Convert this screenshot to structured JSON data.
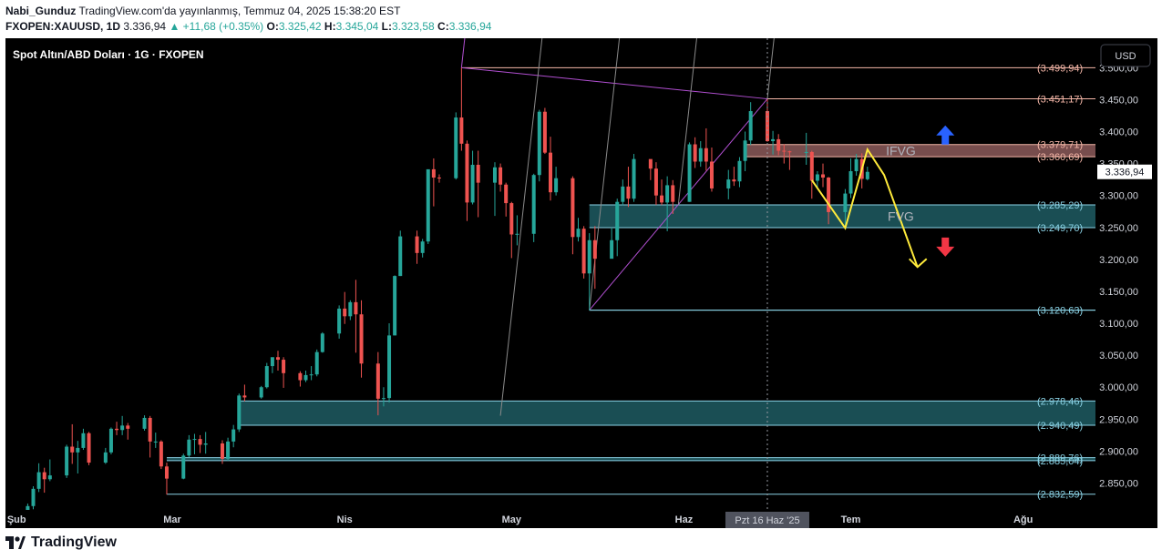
{
  "header": {
    "author": "Nabi_Gunduz",
    "published": "TradingView.com'da yayınlanmış, Temmuz 04, 2025 15:38:20 EST",
    "symbol": "FXOPEN:XAUUSD, 1D",
    "last": "3.336,94",
    "change": "▲ +11,68 (+0.35%)",
    "o_label": "O:",
    "o_val": "3.325,42",
    "h_label": "H:",
    "h_val": "3.345,04",
    "l_label": "L:",
    "l_val": "3.323,58",
    "c_label": "C:",
    "c_val": "3.336,94"
  },
  "footer": {
    "brand": "TradingView"
  },
  "colors": {
    "background": "#000000",
    "up": "#26a69a",
    "down": "#ef5350",
    "level_line": "#8bd3e6",
    "fvg_fill": "#1f5c63",
    "ifvg_fill": "#8c5a5a",
    "pitchfork": "#b14fd1",
    "channel": "#8a8a8a",
    "projection": "#ffeb3b",
    "arrow_up": "#2962ff",
    "arrow_down": "#f23645"
  },
  "chart_data": {
    "type": "candlestick",
    "title": "Spot Altın/ABD Doları · 1G · FXOPEN",
    "currency_button": "USD",
    "x_ticks": [
      "Şub",
      "Mar",
      "Nis",
      "May",
      "Haz",
      "Tem",
      "Ağu"
    ],
    "y_ticks": [
      "3.500,00",
      "3.450,00",
      "3.400,00",
      "3.350,00",
      "3.300,00",
      "3.250,00",
      "3.200,00",
      "3.150,00",
      "3.100,00",
      "3.050,00",
      "3.000,00",
      "2.950,00",
      "2.900,00",
      "2.850,00"
    ],
    "y_tick_values": [
      3500,
      3450,
      3400,
      3350,
      3300,
      3250,
      3200,
      3150,
      3100,
      3050,
      3000,
      2950,
      2900,
      2850
    ],
    "ylim": [
      2808,
      3546
    ],
    "crosshair_label": "Pzt 16 Haz '25",
    "last_price": 3336.94,
    "last_price_label": "3.336,94",
    "levels": [
      {
        "value": 3499.94,
        "label": "(3.499,94)",
        "color": "#f5b7a8",
        "start": "2025-04-22"
      },
      {
        "value": 3451.17,
        "label": "(3.451,17)",
        "color": "#f5b7a8",
        "start": "2025-06-16"
      },
      {
        "value": 3379.71,
        "label": "(3.379,71)",
        "color": "#f5b7a8",
        "start": "2025-06-12"
      },
      {
        "value": 3360.69,
        "label": "(3.360,69)",
        "color": "#f5b7a8",
        "start": "2025-06-12"
      },
      {
        "value": 3285.29,
        "label": "(3.285,29)",
        "color": "#8bd3e6",
        "start": "2025-05-15"
      },
      {
        "value": 3249.7,
        "label": "(3.249,70)",
        "color": "#8bd3e6",
        "start": "2025-05-15"
      },
      {
        "value": 3120.63,
        "label": "(3.120,63)",
        "color": "#8bd3e6",
        "start": "2025-05-15"
      },
      {
        "value": 2978.46,
        "label": "(2.978,46)",
        "color": "#8bd3e6",
        "start": "2025-03-13"
      },
      {
        "value": 2940.49,
        "label": "(2.940,49)",
        "color": "#8bd3e6",
        "start": "2025-03-13"
      },
      {
        "value": 2889.76,
        "label": "(2.889,76)",
        "color": "#8bd3e6",
        "start": "2025-02-28"
      },
      {
        "value": 2885.04,
        "label": "(2.885,04)",
        "color": "#8bd3e6",
        "start": "2025-02-28"
      },
      {
        "value": 2832.59,
        "label": "(2.832,59)",
        "color": "#8bd3e6",
        "start": "2025-02-28"
      }
    ],
    "zones": [
      {
        "label": "IFVG",
        "top": 3379.71,
        "bottom": 3360.69,
        "start": "2025-06-12",
        "kind": "ifvg"
      },
      {
        "label": "FVG",
        "top": 3285.29,
        "bottom": 3249.7,
        "start": "2025-05-15",
        "kind": "fvg"
      },
      {
        "label": "",
        "top": 2978.46,
        "bottom": 2940.49,
        "start": "2025-03-13",
        "kind": "fvg"
      },
      {
        "label": "",
        "top": 2889.76,
        "bottom": 2885.04,
        "start": "2025-02-28",
        "kind": "fvg"
      }
    ],
    "candles": [
      [
        "2025-02-03",
        2800,
        2818,
        2794,
        2814
      ],
      [
        "2025-02-04",
        2814,
        2845,
        2809,
        2841
      ],
      [
        "2025-02-05",
        2841,
        2881,
        2836,
        2867
      ],
      [
        "2025-02-06",
        2867,
        2874,
        2835,
        2856
      ],
      [
        "2025-02-07",
        2856,
        2887,
        2853,
        2862
      ],
      [
        "2025-02-10",
        2862,
        2910,
        2858,
        2907
      ],
      [
        "2025-02-11",
        2907,
        2942,
        2880,
        2898
      ],
      [
        "2025-02-12",
        2898,
        2916,
        2865,
        2905
      ],
      [
        "2025-02-13",
        2905,
        2935,
        2902,
        2928
      ],
      [
        "2025-02-14",
        2928,
        2930,
        2878,
        2882
      ],
      [
        "2025-02-17",
        2882,
        2905,
        2880,
        2898
      ],
      [
        "2025-02-18",
        2898,
        2937,
        2895,
        2935
      ],
      [
        "2025-02-19",
        2935,
        2946,
        2925,
        2933
      ],
      [
        "2025-02-20",
        2933,
        2955,
        2925,
        2940
      ],
      [
        "2025-02-21",
        2940,
        2944,
        2918,
        2935
      ],
      [
        "2025-02-24",
        2935,
        2956,
        2932,
        2952
      ],
      [
        "2025-02-25",
        2952,
        2955,
        2890,
        2915
      ],
      [
        "2025-02-26",
        2915,
        2929,
        2905,
        2915
      ],
      [
        "2025-02-27",
        2915,
        2917,
        2872,
        2876
      ],
      [
        "2025-02-28",
        2876,
        2882,
        2832,
        2857
      ],
      [
        "2025-03-03",
        2857,
        2896,
        2856,
        2893
      ],
      [
        "2025-03-04",
        2893,
        2925,
        2890,
        2918
      ],
      [
        "2025-03-05",
        2918,
        2927,
        2895,
        2919
      ],
      [
        "2025-03-06",
        2919,
        2925,
        2897,
        2910
      ],
      [
        "2025-03-07",
        2910,
        2930,
        2896,
        2912
      ],
      [
        "2025-03-10",
        2912,
        2917,
        2880,
        2888
      ],
      [
        "2025-03-11",
        2888,
        2921,
        2885,
        2915
      ],
      [
        "2025-03-12",
        2915,
        2941,
        2906,
        2934
      ],
      [
        "2025-03-13",
        2934,
        2990,
        2930,
        2987
      ],
      [
        "2025-03-14",
        2987,
        3004,
        2978,
        2984
      ],
      [
        "2025-03-17",
        2984,
        3002,
        2982,
        3000
      ],
      [
        "2025-03-18",
        3000,
        3038,
        2998,
        3033
      ],
      [
        "2025-03-19",
        3033,
        3045,
        3022,
        3047
      ],
      [
        "2025-03-20",
        3047,
        3057,
        3026,
        3043
      ],
      [
        "2025-03-21",
        3043,
        3047,
        2999,
        3022
      ],
      [
        "2025-03-24",
        3022,
        3025,
        3001,
        3011
      ],
      [
        "2025-03-25",
        3011,
        3026,
        3008,
        3019
      ],
      [
        "2025-03-26",
        3019,
        3033,
        3011,
        3020
      ],
      [
        "2025-03-27",
        3020,
        3059,
        3017,
        3055
      ],
      [
        "2025-03-28",
        3055,
        3086,
        3054,
        3084
      ],
      [
        "2025-03-31",
        3084,
        3128,
        3076,
        3123
      ],
      [
        "2025-04-01",
        3123,
        3149,
        3099,
        3111
      ],
      [
        "2025-04-02",
        3111,
        3136,
        3105,
        3133
      ],
      [
        "2025-04-03",
        3133,
        3168,
        3054,
        3114
      ],
      [
        "2025-04-04",
        3114,
        3136,
        3015,
        3037
      ],
      [
        "2025-04-07",
        3037,
        3055,
        2956,
        2982
      ],
      [
        "2025-04-08",
        2982,
        3000,
        2970,
        2983
      ],
      [
        "2025-04-09",
        2983,
        3100,
        2976,
        3081
      ],
      [
        "2025-04-10",
        3081,
        3175,
        3081,
        3174
      ],
      [
        "2025-04-11",
        3174,
        3245,
        3174,
        3236
      ],
      [
        "2025-04-14",
        3236,
        3245,
        3193,
        3210
      ],
      [
        "2025-04-15",
        3210,
        3232,
        3203,
        3228
      ],
      [
        "2025-04-16",
        3228,
        3334,
        3224,
        3341
      ],
      [
        "2025-04-17",
        3341,
        3358,
        3283,
        3328
      ],
      [
        "2025-04-18",
        3328,
        3333,
        3320,
        3327
      ],
      [
        "2025-04-21",
        3327,
        3430,
        3325,
        3422
      ],
      [
        "2025-04-22",
        3422,
        3500,
        3370,
        3381
      ],
      [
        "2025-04-23",
        3381,
        3386,
        3260,
        3289
      ],
      [
        "2025-04-24",
        3289,
        3370,
        3286,
        3348
      ],
      [
        "2025-04-25",
        3348,
        3370,
        3266,
        3320
      ],
      [
        "2025-04-28",
        3320,
        3352,
        3268,
        3344
      ],
      [
        "2025-04-29",
        3344,
        3350,
        3306,
        3317
      ],
      [
        "2025-04-30",
        3317,
        3320,
        3267,
        3288
      ],
      [
        "2025-05-01",
        3288,
        3290,
        3202,
        3239
      ],
      [
        "2025-05-02",
        3239,
        3269,
        3222,
        3240
      ],
      [
        "2025-05-05",
        3240,
        3334,
        3227,
        3332
      ],
      [
        "2025-05-06",
        3332,
        3434,
        3322,
        3431
      ],
      [
        "2025-05-07",
        3431,
        3437,
        3365,
        3367
      ],
      [
        "2025-05-08",
        3367,
        3392,
        3292,
        3305
      ],
      [
        "2025-05-09",
        3305,
        3345,
        3300,
        3327
      ],
      [
        "2025-05-12",
        3327,
        3330,
        3208,
        3235
      ],
      [
        "2025-05-13",
        3235,
        3265,
        3228,
        3248
      ],
      [
        "2025-05-14",
        3248,
        3252,
        3170,
        3178
      ],
      [
        "2025-05-15",
        3178,
        3241,
        3120,
        3230
      ],
      [
        "2025-05-16",
        3230,
        3252,
        3154,
        3201
      ],
      [
        "2025-05-19",
        3201,
        3250,
        3206,
        3230
      ],
      [
        "2025-05-20",
        3230,
        3295,
        3205,
        3290
      ],
      [
        "2025-05-21",
        3290,
        3325,
        3285,
        3314
      ],
      [
        "2025-05-22",
        3314,
        3345,
        3282,
        3295
      ],
      [
        "2025-05-23",
        3295,
        3365,
        3290,
        3357
      ],
      [
        "2025-05-26",
        3357,
        3356,
        3324,
        3342
      ],
      [
        "2025-05-27",
        3342,
        3352,
        3285,
        3300
      ],
      [
        "2025-05-28",
        3300,
        3325,
        3285,
        3289
      ],
      [
        "2025-05-29",
        3289,
        3330,
        3244,
        3316
      ],
      [
        "2025-05-30",
        3316,
        3324,
        3271,
        3290
      ],
      [
        "2025-06-02",
        3290,
        3383,
        3290,
        3380
      ],
      [
        "2025-06-03",
        3380,
        3391,
        3343,
        3353
      ],
      [
        "2025-06-04",
        3353,
        3385,
        3345,
        3374
      ],
      [
        "2025-06-05",
        3374,
        3405,
        3339,
        3353
      ],
      [
        "2025-06-06",
        3353,
        3375,
        3306,
        3311
      ],
      [
        "2025-06-09",
        3311,
        3340,
        3294,
        3325
      ],
      [
        "2025-06-10",
        3325,
        3345,
        3315,
        3322
      ],
      [
        "2025-06-11",
        3322,
        3360,
        3313,
        3354
      ],
      [
        "2025-06-12",
        3354,
        3400,
        3338,
        3386
      ],
      [
        "2025-06-13",
        3386,
        3446,
        3379,
        3432
      ],
      [
        "2025-06-16",
        3432,
        3451,
        3384,
        3385
      ],
      [
        "2025-06-17",
        3385,
        3401,
        3364,
        3388
      ],
      [
        "2025-06-18",
        3388,
        3396,
        3363,
        3370
      ],
      [
        "2025-06-19",
        3370,
        3380,
        3350,
        3369
      ],
      [
        "2025-06-20",
        3369,
        3370,
        3340,
        3368
      ],
      [
        "2025-06-23",
        3368,
        3398,
        3348,
        3368
      ],
      [
        "2025-06-24",
        3368,
        3370,
        3295,
        3323
      ],
      [
        "2025-06-25",
        3323,
        3338,
        3311,
        3333
      ],
      [
        "2025-06-26",
        3333,
        3350,
        3313,
        3328
      ],
      [
        "2025-06-27",
        3328,
        3329,
        3255,
        3274
      ],
      [
        "2025-06-30",
        3274,
        3310,
        3247,
        3303
      ],
      [
        "2025-07-01",
        3303,
        3358,
        3296,
        3338
      ],
      [
        "2025-07-02",
        3338,
        3365,
        3331,
        3357
      ],
      [
        "2025-07-03",
        3357,
        3366,
        3311,
        3326
      ],
      [
        "2025-07-04",
        3325.42,
        3345.04,
        3323.58,
        3336.94
      ]
    ],
    "projection_path": [
      [
        "2025-06-24",
        3324
      ],
      [
        "2025-06-30",
        3249
      ],
      [
        "2025-07-04",
        3372
      ],
      [
        "2025-07-07",
        3332
      ],
      [
        "2025-07-13",
        3188
      ]
    ],
    "arrows": [
      {
        "direction": "up",
        "date": "2025-07-18",
        "value": 3394
      },
      {
        "direction": "down",
        "date": "2025-07-18",
        "value": 3220
      }
    ],
    "pitchfork": {
      "p0": [
        "2025-05-15",
        3120.63
      ],
      "p1": [
        "2025-04-22",
        3499.94
      ],
      "p2": [
        "2025-06-16",
        3451.17
      ]
    }
  }
}
